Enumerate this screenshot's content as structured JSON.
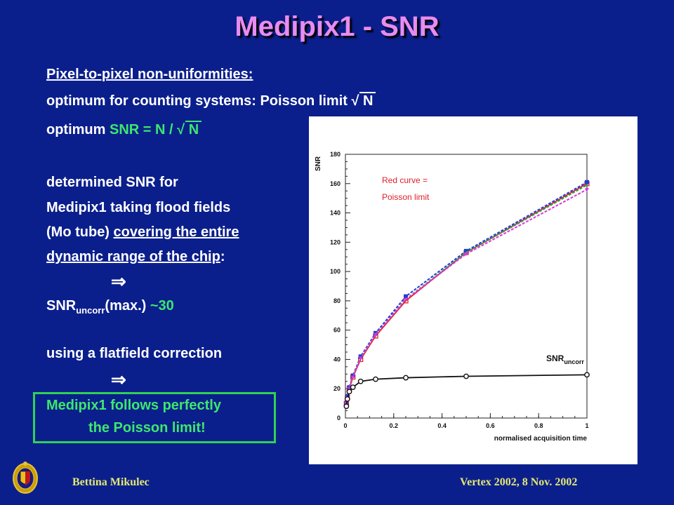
{
  "title": "Medipix1 - SNR",
  "text": {
    "l1": "Pixel-to-pixel non-uniformities:",
    "l2_a": "optimum for counting systems: Poisson limit ",
    "l2_sqrt": "√",
    "l2_n": "N",
    "l3_a": "optimum ",
    "l3_b": "SNR = N / ",
    "l3_sqrt": "√",
    "l3_n": "N",
    "l4": "determined SNR for",
    "l5": "Medipix1 taking flood fields",
    "l6_a": "(Mo tube) ",
    "l6_b": "covering the entire",
    "l7_a": "dynamic range of the chip",
    "l7_b": ":",
    "arrow": "⇒",
    "l8_a": "SNR",
    "l8_sub": "uncorr",
    "l8_b": "(max.) ",
    "l8_c": "~30",
    "l9": "using a flatfield correction",
    "arrow2": "⇒",
    "l10": "Medipix1 follows perfectly",
    "l11": "the Poisson limit!"
  },
  "footer": {
    "author": "Bettina Mikulec",
    "conference": "Vertex 2002, 8 Nov. 2002"
  },
  "colors": {
    "background": "#0b1f8c",
    "title": "#e88cf0",
    "highlight": "#3ce86c",
    "footer": "#e4e870"
  },
  "chart_data": {
    "type": "line",
    "xlabel": "normalised acquisition time",
    "ylabel": "SNR",
    "xlim": [
      0,
      1
    ],
    "ylim": [
      0,
      180
    ],
    "xticks": [
      0,
      0.2,
      0.4,
      0.6,
      0.8,
      1
    ],
    "xtick_labels": [
      "0",
      "0.2",
      "0.4",
      "0.6",
      "0.8",
      "1"
    ],
    "yticks": [
      0,
      20,
      40,
      60,
      80,
      100,
      120,
      140,
      160,
      180
    ],
    "ytick_labels": [
      "0",
      "20",
      "40",
      "60",
      "80",
      "100",
      "120",
      "140",
      "160",
      "180"
    ],
    "annotation_poisson_1": "Red curve =",
    "annotation_poisson_2": "Poisson limit",
    "annotation_uncorr": "SNR",
    "annotation_uncorr_sub": "uncorr",
    "series": [
      {
        "color": "#e0202a",
        "style": "solid",
        "marker": "square-open",
        "x": [
          0.004,
          0.008,
          0.016,
          0.031,
          0.063,
          0.125,
          0.25,
          0.5,
          1.0
        ],
        "y": [
          10,
          14,
          20,
          28,
          40,
          56,
          80,
          113,
          160
        ]
      },
      {
        "color": "#1f3fd8",
        "style": "dashed",
        "marker": "square-filled",
        "x": [
          0.004,
          0.008,
          0.016,
          0.031,
          0.063,
          0.125,
          0.25,
          0.5,
          1.0
        ],
        "y": [
          10,
          15,
          21,
          29,
          42,
          58,
          83,
          114,
          161
        ]
      },
      {
        "color": "#28a845",
        "style": "dashed",
        "marker": "none",
        "x": [
          0.004,
          0.008,
          0.016,
          0.031,
          0.063,
          0.125,
          0.25,
          0.5,
          1.0
        ],
        "y": [
          10,
          14,
          20,
          28,
          41,
          57,
          81,
          113,
          159
        ]
      },
      {
        "color": "#d838d8",
        "style": "dashed",
        "marker": "triangle",
        "x": [
          0.004,
          0.008,
          0.016,
          0.031,
          0.063,
          0.125,
          0.25,
          0.5,
          1.0
        ],
        "y": [
          10,
          14,
          20,
          28,
          41,
          57,
          81,
          112,
          156
        ]
      },
      {
        "color": "#111111",
        "style": "solid",
        "marker": "circle-open",
        "x": [
          0.004,
          0.008,
          0.016,
          0.031,
          0.063,
          0.125,
          0.25,
          0.5,
          1.0
        ],
        "y": [
          8,
          13,
          18,
          21,
          25,
          26.5,
          27.5,
          28.5,
          29.5
        ]
      }
    ]
  }
}
